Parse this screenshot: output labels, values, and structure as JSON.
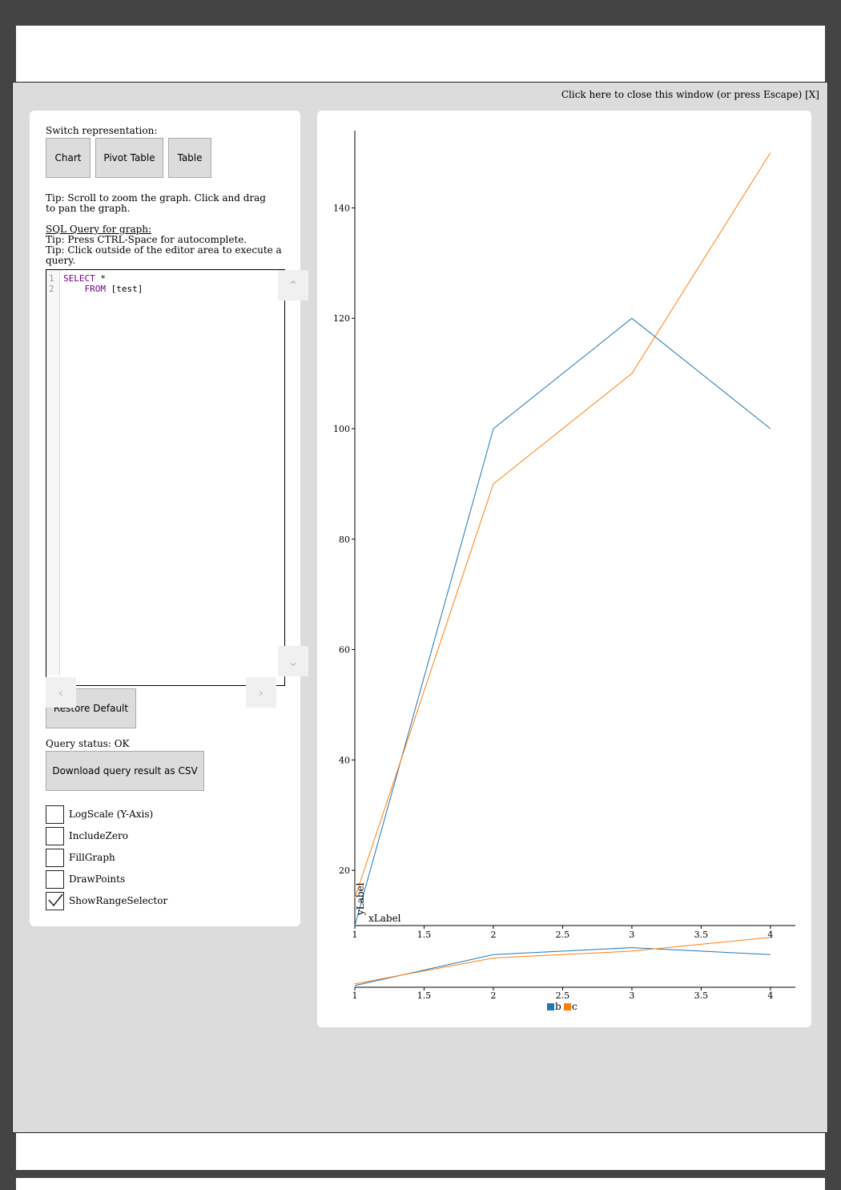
{
  "window": {
    "close_text": "Click here to close this window (or press Escape) [X]"
  },
  "left": {
    "switch_label": "Switch representation:",
    "buttons": [
      {
        "label": "Chart"
      },
      {
        "label": "Pivot Table"
      },
      {
        "label": "Table"
      }
    ],
    "tip_zoom": "Tip: Scroll to zoom the graph. Click and drag to pan the graph.",
    "sql_label": "SQL Query for graph:",
    "tip_autocomplete": "Tip: Press CTRL-Space for autocomplete.",
    "tip_execute": "Tip: Click outside of the editor area to execute a query.",
    "editor": {
      "line_numbers": [
        "1",
        "2"
      ],
      "line1_keyword": "SELECT",
      "line1_rest": " *",
      "line2_keyword": "FROM",
      "line2_rest": " [test]"
    },
    "restore_label": "Restore Default",
    "query_status": "Query status: OK",
    "download_label": "Download query result as CSV",
    "checkboxes": [
      {
        "label": "LogScale (Y-Axis)",
        "checked": false
      },
      {
        "label": "IncludeZero",
        "checked": false
      },
      {
        "label": "FillGraph",
        "checked": false
      },
      {
        "label": "DrawPoints",
        "checked": false
      },
      {
        "label": "ShowRangeSelector",
        "checked": true
      }
    ]
  },
  "chart_data": {
    "type": "line",
    "xlabel": "xLabel",
    "ylabel": "yLabel",
    "x": [
      1,
      2,
      3,
      4
    ],
    "xlim": [
      1,
      4.18
    ],
    "ylim": [
      10,
      154
    ],
    "x_ticks": [
      "1",
      "1.5",
      "2",
      "2.5",
      "3",
      "3.5",
      "4"
    ],
    "y_ticks": [
      "20",
      "40",
      "60",
      "80",
      "100",
      "120",
      "140"
    ],
    "series": [
      {
        "name": "b",
        "values": [
          10,
          100,
          120,
          100
        ],
        "color": "#1f77b4"
      },
      {
        "name": "c",
        "values": [
          15,
          90,
          110,
          150
        ],
        "color": "#ff7f0e"
      }
    ],
    "legend_position": "bottom-center",
    "range_selector": true
  }
}
